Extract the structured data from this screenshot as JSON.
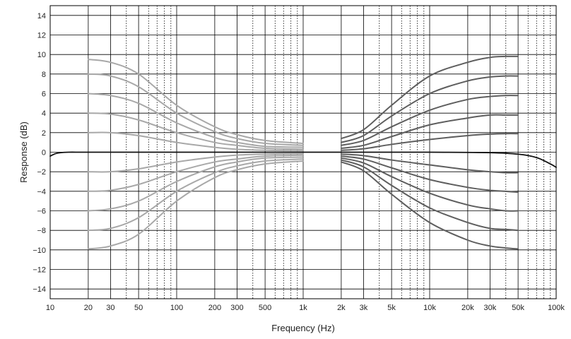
{
  "chart_data": {
    "type": "line",
    "title": "",
    "xlabel": "Frequency (Hz)",
    "ylabel": "Response (dB)",
    "xscale": "log",
    "xlim": [
      10,
      100000
    ],
    "ylim": [
      -15,
      15
    ],
    "grid": true,
    "legend": "none",
    "x_ticks": [
      {
        "value": 10,
        "label": "10"
      },
      {
        "value": 20,
        "label": "20"
      },
      {
        "value": 30,
        "label": "30"
      },
      {
        "value": 50,
        "label": "50"
      },
      {
        "value": 100,
        "label": "100"
      },
      {
        "value": 200,
        "label": "200"
      },
      {
        "value": 300,
        "label": "300"
      },
      {
        "value": 500,
        "label": "500"
      },
      {
        "value": 1000,
        "label": "1k"
      },
      {
        "value": 2000,
        "label": "2k"
      },
      {
        "value": 3000,
        "label": "3k"
      },
      {
        "value": 5000,
        "label": "5k"
      },
      {
        "value": 10000,
        "label": "10k"
      },
      {
        "value": 20000,
        "label": "20k"
      },
      {
        "value": 30000,
        "label": "30k"
      },
      {
        "value": 50000,
        "label": "50k"
      },
      {
        "value": 100000,
        "label": "100k"
      }
    ],
    "x_minor_gridlines": [
      40,
      60,
      70,
      80,
      90,
      400,
      600,
      700,
      800,
      900,
      4000,
      6000,
      7000,
      8000,
      9000,
      40000,
      60000,
      70000,
      80000,
      90000
    ],
    "y_ticks": [
      {
        "value": 14,
        "label": "14"
      },
      {
        "value": 12,
        "label": "12"
      },
      {
        "value": 10,
        "label": "10"
      },
      {
        "value": 8,
        "label": "8"
      },
      {
        "value": 6,
        "label": "6"
      },
      {
        "value": 4,
        "label": "4"
      },
      {
        "value": 2,
        "label": "2"
      },
      {
        "value": 0,
        "label": "0"
      },
      {
        "value": -2,
        "label": "−2"
      },
      {
        "value": -4,
        "label": "−4"
      },
      {
        "value": -6,
        "label": "−6"
      },
      {
        "value": -8,
        "label": "−8"
      },
      {
        "value": -10,
        "label": "−10"
      },
      {
        "value": -12,
        "label": "−12"
      },
      {
        "value": -14,
        "label": "−14"
      }
    ],
    "colors": {
      "bass": "#a8a8a8",
      "treble": "#5e5e5e",
      "flat": "#111111",
      "grid": "#000000"
    },
    "series": [
      {
        "group": "bass",
        "x": [
          20,
          30,
          50,
          100,
          200,
          300,
          500,
          1000
        ],
        "y": [
          9.5,
          9.2,
          8.0,
          4.8,
          2.6,
          1.8,
          1.2,
          0.9
        ]
      },
      {
        "group": "bass",
        "x": [
          20,
          30,
          50,
          100,
          200,
          300,
          500,
          1000
        ],
        "y": [
          8.0,
          7.8,
          6.7,
          4.0,
          2.1,
          1.4,
          0.9,
          0.7
        ]
      },
      {
        "group": "bass",
        "x": [
          20,
          30,
          50,
          100,
          200,
          300,
          500,
          1000
        ],
        "y": [
          6.0,
          5.8,
          5.0,
          3.0,
          1.5,
          1.0,
          0.6,
          0.5
        ]
      },
      {
        "group": "bass",
        "x": [
          20,
          30,
          50,
          100,
          200,
          300,
          500,
          1000
        ],
        "y": [
          4.0,
          3.9,
          3.3,
          2.0,
          1.0,
          0.7,
          0.4,
          0.3
        ]
      },
      {
        "group": "bass",
        "x": [
          20,
          30,
          50,
          100,
          200,
          300,
          500,
          1000
        ],
        "y": [
          2.0,
          2.0,
          1.7,
          1.0,
          0.5,
          0.3,
          0.2,
          0.15
        ]
      },
      {
        "group": "bass",
        "x": [
          20,
          30,
          50,
          100,
          200,
          300,
          500,
          1000
        ],
        "y": [
          -2.0,
          -2.0,
          -1.7,
          -1.0,
          -0.5,
          -0.3,
          -0.2,
          -0.15
        ]
      },
      {
        "group": "bass",
        "x": [
          20,
          30,
          50,
          100,
          200,
          300,
          500,
          1000
        ],
        "y": [
          -4.0,
          -3.9,
          -3.3,
          -2.0,
          -1.0,
          -0.7,
          -0.4,
          -0.3
        ]
      },
      {
        "group": "bass",
        "x": [
          20,
          30,
          50,
          100,
          200,
          300,
          500,
          1000
        ],
        "y": [
          -6.0,
          -5.8,
          -5.0,
          -3.0,
          -1.5,
          -1.0,
          -0.6,
          -0.5
        ]
      },
      {
        "group": "bass",
        "x": [
          20,
          30,
          50,
          100,
          200,
          300,
          500,
          1000
        ],
        "y": [
          -8.0,
          -7.8,
          -6.7,
          -4.0,
          -2.1,
          -1.4,
          -0.9,
          -0.7
        ]
      },
      {
        "group": "bass",
        "x": [
          20,
          30,
          50,
          100,
          200,
          300,
          500,
          1000
        ],
        "y": [
          -9.9,
          -9.6,
          -8.4,
          -5.0,
          -2.6,
          -1.8,
          -1.2,
          -0.9
        ]
      },
      {
        "group": "treble",
        "x": [
          2000,
          3000,
          5000,
          10000,
          20000,
          30000,
          40000,
          50000
        ],
        "y": [
          1.4,
          2.3,
          4.8,
          7.8,
          9.2,
          9.7,
          9.8,
          9.8
        ]
      },
      {
        "group": "treble",
        "x": [
          2000,
          3000,
          5000,
          10000,
          20000,
          30000,
          40000,
          50000
        ],
        "y": [
          1.0,
          1.7,
          3.7,
          6.0,
          7.3,
          7.7,
          7.8,
          7.8
        ]
      },
      {
        "group": "treble",
        "x": [
          2000,
          3000,
          5000,
          10000,
          20000,
          30000,
          40000,
          50000
        ],
        "y": [
          0.7,
          1.2,
          2.6,
          4.3,
          5.4,
          5.7,
          5.8,
          5.8
        ]
      },
      {
        "group": "treble",
        "x": [
          2000,
          3000,
          5000,
          10000,
          20000,
          30000,
          40000,
          50000
        ],
        "y": [
          0.4,
          0.7,
          1.6,
          2.8,
          3.5,
          3.8,
          3.8,
          3.8
        ]
      },
      {
        "group": "treble",
        "x": [
          2000,
          3000,
          5000,
          10000,
          20000,
          30000,
          40000,
          50000
        ],
        "y": [
          0.2,
          0.35,
          0.8,
          1.3,
          1.7,
          1.85,
          1.9,
          1.9
        ]
      },
      {
        "group": "treble",
        "x": [
          2000,
          3000,
          5000,
          10000,
          20000,
          30000,
          40000,
          50000
        ],
        "y": [
          -0.2,
          -0.35,
          -0.8,
          -1.3,
          -1.8,
          -2.0,
          -2.1,
          -2.1
        ]
      },
      {
        "group": "treble",
        "x": [
          2000,
          3000,
          5000,
          10000,
          20000,
          30000,
          40000,
          50000
        ],
        "y": [
          -0.4,
          -0.7,
          -1.6,
          -2.8,
          -3.6,
          -3.9,
          -4.0,
          -4.1
        ]
      },
      {
        "group": "treble",
        "x": [
          2000,
          3000,
          5000,
          10000,
          20000,
          30000,
          40000,
          50000
        ],
        "y": [
          -0.6,
          -1.1,
          -2.5,
          -4.2,
          -5.4,
          -5.8,
          -6.0,
          -6.0
        ]
      },
      {
        "group": "treble",
        "x": [
          2000,
          3000,
          5000,
          10000,
          20000,
          30000,
          40000,
          50000
        ],
        "y": [
          -0.8,
          -1.5,
          -3.4,
          -5.7,
          -7.2,
          -7.8,
          -7.9,
          -8.0
        ]
      },
      {
        "group": "treble",
        "x": [
          2000,
          3000,
          5000,
          10000,
          20000,
          30000,
          40000,
          50000
        ],
        "y": [
          -1.0,
          -1.9,
          -4.3,
          -7.2,
          -9.0,
          -9.6,
          -9.8,
          -9.9
        ]
      },
      {
        "group": "flat",
        "x": [
          10,
          11,
          12,
          14,
          17,
          20,
          30,
          100,
          1000,
          10000,
          30000,
          50000,
          70000,
          90000,
          100000
        ],
        "y": [
          -0.4,
          -0.15,
          -0.05,
          0,
          0,
          0,
          0,
          0,
          0,
          0,
          -0.05,
          -0.2,
          -0.55,
          -1.2,
          -1.55
        ]
      }
    ]
  }
}
